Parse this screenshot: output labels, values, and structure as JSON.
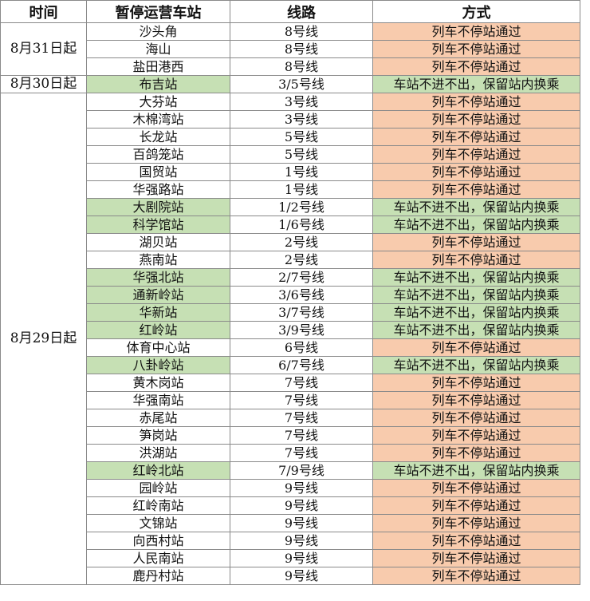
{
  "table": {
    "header": [
      "时间",
      "暂停运营车站",
      "线路",
      "方式"
    ],
    "groups": [
      {
        "time": "8月31日起",
        "rows": [
          {
            "station": "沙头角",
            "line": "8号线",
            "method": "列车不停站通过",
            "station_color": "#ffffff",
            "method_color": "#f8cbad"
          },
          {
            "station": "海山",
            "line": "8号线",
            "method": "列车不停站通过",
            "station_color": "#ffffff",
            "method_color": "#f8cbad"
          },
          {
            "station": "盐田港西",
            "line": "8号线",
            "method": "列车不停站通过",
            "station_color": "#ffffff",
            "method_color": "#f8cbad"
          }
        ]
      },
      {
        "time": "8月30日起",
        "rows": [
          {
            "station": "布吉站",
            "line": "3/5号线",
            "method": "车站不进不出，保留站内换乘",
            "station_color": "#c6e0b4",
            "method_color": "#c6e0b4"
          }
        ]
      },
      {
        "time": "8月29日起",
        "rows": [
          {
            "station": "大芬站",
            "line": "3号线",
            "method": "列车不停站通过",
            "station_color": "#ffffff",
            "method_color": "#f8cbad"
          },
          {
            "station": "木棉湾站",
            "line": "3号线",
            "method": "列车不停站通过",
            "station_color": "#ffffff",
            "method_color": "#f8cbad"
          },
          {
            "station": "长龙站",
            "line": "5号线",
            "method": "列车不停站通过",
            "station_color": "#ffffff",
            "method_color": "#f8cbad"
          },
          {
            "station": "百鸽笼站",
            "line": "5号线",
            "method": "列车不停站通过",
            "station_color": "#ffffff",
            "method_color": "#f8cbad"
          },
          {
            "station": "国贸站",
            "line": "1号线",
            "method": "列车不停站通过",
            "station_color": "#ffffff",
            "method_color": "#f8cbad"
          },
          {
            "station": "华强路站",
            "line": "1号线",
            "method": "列车不停站通过",
            "station_color": "#ffffff",
            "method_color": "#f8cbad"
          },
          {
            "station": "大剧院站",
            "line": "1/2号线",
            "method": "车站不进不出，保留站内换乘",
            "station_color": "#c6e0b4",
            "method_color": "#c6e0b4"
          },
          {
            "station": "科学馆站",
            "line": "1/6号线",
            "method": "车站不进不出，保留站内换乘",
            "station_color": "#c6e0b4",
            "method_color": "#c6e0b4"
          },
          {
            "station": "湖贝站",
            "line": "2号线",
            "method": "列车不停站通过",
            "station_color": "#ffffff",
            "method_color": "#f8cbad"
          },
          {
            "station": "燕南站",
            "line": "2号线",
            "method": "列车不停站通过",
            "station_color": "#ffffff",
            "method_color": "#f8cbad"
          },
          {
            "station": "华强北站",
            "line": "2/7号线",
            "method": "车站不进不出，保留站内换乘",
            "station_color": "#c6e0b4",
            "method_color": "#c6e0b4"
          },
          {
            "station": "通新岭站",
            "line": "3/6号线",
            "method": "车站不进不出，保留站内换乘",
            "station_color": "#c6e0b4",
            "method_color": "#c6e0b4"
          },
          {
            "station": "华新站",
            "line": "3/7号线",
            "method": "车站不进不出，保留站内换乘",
            "station_color": "#c6e0b4",
            "method_color": "#c6e0b4"
          },
          {
            "station": "红岭站",
            "line": "3/9号线",
            "method": "车站不进不出，保留站内换乘",
            "station_color": "#c6e0b4",
            "method_color": "#c6e0b4"
          },
          {
            "station": "体育中心站",
            "line": "6号线",
            "method": "列车不停站通过",
            "station_color": "#ffffff",
            "method_color": "#f8cbad"
          },
          {
            "station": "八卦岭站",
            "line": "6/7号线",
            "method": "车站不进不出，保留站内换乘",
            "station_color": "#c6e0b4",
            "method_color": "#c6e0b4"
          },
          {
            "station": "黄木岗站",
            "line": "7号线",
            "method": "列车不停站通过",
            "station_color": "#ffffff",
            "method_color": "#f8cbad"
          },
          {
            "station": "华强南站",
            "line": "7号线",
            "method": "列车不停站通过",
            "station_color": "#ffffff",
            "method_color": "#f8cbad"
          },
          {
            "station": "赤尾站",
            "line": "7号线",
            "method": "列车不停站通过",
            "station_color": "#ffffff",
            "method_color": "#f8cbad"
          },
          {
            "station": "笋岗站",
            "line": "7号线",
            "method": "列车不停站通过",
            "station_color": "#ffffff",
            "method_color": "#f8cbad"
          },
          {
            "station": "洪湖站",
            "line": "7号线",
            "method": "列车不停站通过",
            "station_color": "#ffffff",
            "method_color": "#f8cbad"
          },
          {
            "station": "红岭北站",
            "line": "7/9号线",
            "method": "车站不进不出，保留站内换乘",
            "station_color": "#c6e0b4",
            "method_color": "#c6e0b4"
          },
          {
            "station": "园岭站",
            "line": "9号线",
            "method": "列车不停站通过",
            "station_color": "#ffffff",
            "method_color": "#f8cbad"
          },
          {
            "station": "红岭南站",
            "line": "9号线",
            "method": "列车不停站通过",
            "station_color": "#ffffff",
            "method_color": "#f8cbad"
          },
          {
            "station": "文锦站",
            "line": "9号线",
            "method": "列车不停站通过",
            "station_color": "#ffffff",
            "method_color": "#f8cbad"
          },
          {
            "station": "向西村站",
            "line": "9号线",
            "method": "列车不停站通过",
            "station_color": "#ffffff",
            "method_color": "#f8cbad"
          },
          {
            "station": "人民南站",
            "line": "9号线",
            "method": "列车不停站通过",
            "station_color": "#ffffff",
            "method_color": "#f8cbad"
          },
          {
            "station": "鹿丹村站",
            "line": "9号线",
            "method": "列车不停站通过",
            "station_color": "#ffffff",
            "method_color": "#f8cbad"
          }
        ]
      }
    ]
  }
}
